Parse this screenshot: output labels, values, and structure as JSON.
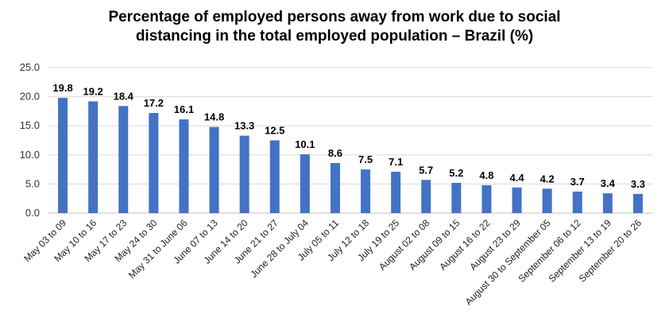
{
  "chart_data": {
    "type": "bar",
    "title": [
      "Percentage of employed persons away from work due to social",
      "distancing in the total employed population – Brazil (%)"
    ],
    "xlabel": "",
    "ylabel": "",
    "ylim": [
      0,
      25
    ],
    "yticks": [
      "0.0",
      "5.0",
      "10.0",
      "15.0",
      "20.0",
      "25.0"
    ],
    "grid": true,
    "legend": "none",
    "bar_color": "#4472c4",
    "categories": [
      "May 03 to 09",
      "May 10 to 16",
      "May 17 to 23",
      "May 24 to 30",
      "May 31 to June 06",
      "June 07 to 13",
      "June 14 to 20",
      "June 21 to 27",
      "June 28 to July 04",
      "July 05 to 11",
      "July 12 to 18",
      "July 19 to 25",
      "August 02 to 08",
      "August 09 to 15",
      "August 16 to 22",
      "August 23 to 29",
      "August 30 to September 05",
      "September 06 to 12",
      "September 13 to 19",
      "September 20 to 26"
    ],
    "values": [
      19.8,
      19.2,
      18.4,
      17.2,
      16.1,
      14.8,
      13.3,
      12.5,
      10.1,
      8.6,
      7.5,
      7.1,
      5.7,
      5.2,
      4.8,
      4.4,
      4.2,
      3.7,
      3.4,
      3.3
    ],
    "data_labels": [
      "19.8",
      "19.2",
      "18.4",
      "17.2",
      "16.1",
      "14.8",
      "13.3",
      "12.5",
      "10.1",
      "8.6",
      "7.5",
      "7.1",
      "5.7",
      "5.2",
      "4.8",
      "4.4",
      "4.2",
      "3.7",
      "3.4",
      "3.3"
    ]
  }
}
